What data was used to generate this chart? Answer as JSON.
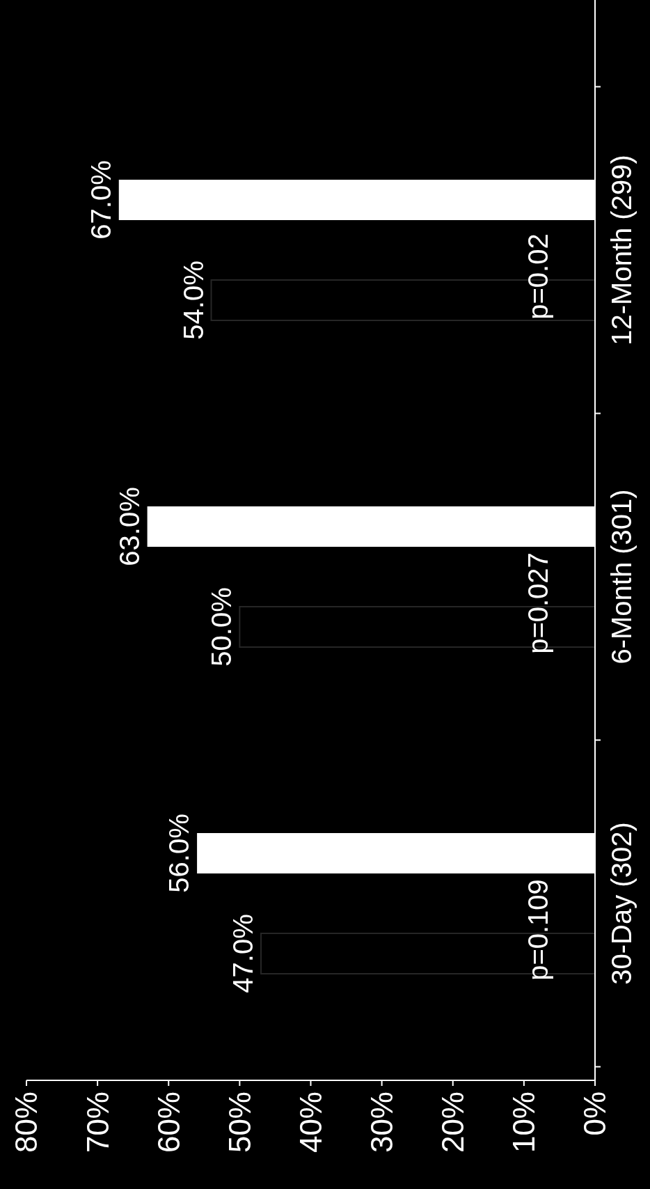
{
  "chart_data": {
    "type": "bar",
    "orientation": "horizontal",
    "categories": [
      "12-Month (299)",
      "6-Month (301)",
      "30-Day (302)"
    ],
    "series": [
      {
        "color": "#000000",
        "values": [
          54,
          50,
          47
        ],
        "value_labels": [
          "54.0%",
          "50.0%",
          "47.0%"
        ]
      },
      {
        "color": "#ffffff",
        "values": [
          67,
          63,
          56
        ],
        "value_labels": [
          "67.0%",
          "63.0%",
          "56.0%"
        ]
      }
    ],
    "xlim": [
      80,
      0
    ],
    "xticks": [
      {
        "value": 0,
        "label": "0%"
      },
      {
        "value": 10,
        "label": "10%"
      },
      {
        "value": 20,
        "label": "20%"
      },
      {
        "value": 30,
        "label": "30%"
      },
      {
        "value": 40,
        "label": "40%"
      },
      {
        "value": 50,
        "label": "50%"
      },
      {
        "value": 60,
        "label": "60%"
      },
      {
        "value": 70,
        "label": "70%"
      },
      {
        "value": 80,
        "label": "80%"
      }
    ],
    "annotations": [
      "p=0.02",
      "p=0.027",
      "p=0.109"
    ],
    "grid": false
  }
}
